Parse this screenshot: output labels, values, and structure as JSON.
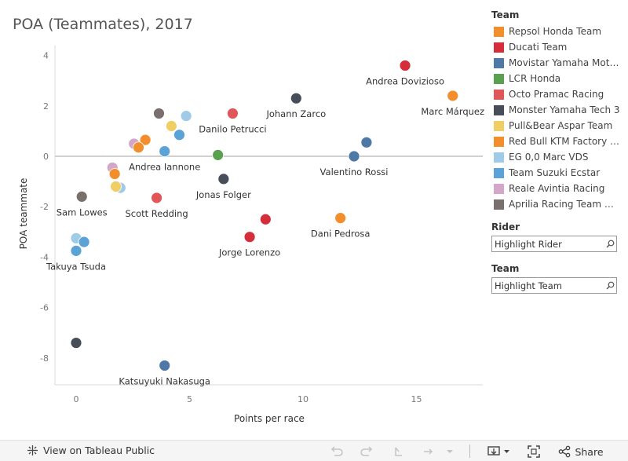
{
  "title": "POA (Teammates), 2017",
  "chart_data": {
    "type": "scatter",
    "xlabel": "Points per race",
    "ylabel": "POA teammate",
    "xlim": [
      -2,
      18
    ],
    "ylim": [
      -9,
      4.3
    ],
    "xticks": [
      "0",
      "5",
      "10",
      "15"
    ],
    "xtick_values": [
      0,
      5,
      10,
      15
    ],
    "yticks": [
      "4",
      "2",
      "0",
      "-2",
      "-4",
      "-6",
      "-8"
    ],
    "ytick_values": [
      4,
      2,
      0,
      -2,
      -4,
      -6,
      -8
    ],
    "zero_line": true,
    "points": [
      {
        "x": 14.5,
        "y": 3.6,
        "team": "Ducati Team",
        "label": "Andrea Dovizioso"
      },
      {
        "x": 16.6,
        "y": 2.4,
        "team": "Repsol Honda Team",
        "label": "Marc Márquez"
      },
      {
        "x": 9.7,
        "y": 2.3,
        "team": "Monster Yamaha Tech 3",
        "label": "Johann Zarco"
      },
      {
        "x": 6.9,
        "y": 1.7,
        "team": "Octo Pramac Racing",
        "label": "Danilo Petrucci"
      },
      {
        "x": 3.65,
        "y": 1.7,
        "team": "Aprilia Racing Team Gresini",
        "label": ""
      },
      {
        "x": 4.85,
        "y": 1.6,
        "team": "EG 0,0 Marc VDS",
        "label": ""
      },
      {
        "x": 4.2,
        "y": 1.2,
        "team": "Pull&Bear Aspar Team",
        "label": ""
      },
      {
        "x": 4.55,
        "y": 0.85,
        "team": "Team Suzuki Ecstar",
        "label": ""
      },
      {
        "x": 3.05,
        "y": 0.65,
        "team": "Red Bull KTM Factory Racing",
        "label": ""
      },
      {
        "x": 2.55,
        "y": 0.5,
        "team": "Reale Avintia Racing",
        "label": ""
      },
      {
        "x": 2.75,
        "y": 0.35,
        "team": "Red Bull KTM Factory Racing",
        "label": ""
      },
      {
        "x": 3.9,
        "y": 0.2,
        "team": "Team Suzuki Ecstar",
        "label": "Andrea Iannone"
      },
      {
        "x": 6.25,
        "y": 0.05,
        "team": "LCR Honda",
        "label": ""
      },
      {
        "x": 12.8,
        "y": 0.55,
        "team": "Movistar Yamaha MotoGP",
        "label": ""
      },
      {
        "x": 12.25,
        "y": 0.0,
        "team": "Movistar Yamaha MotoGP",
        "label": "Valentino Rossi"
      },
      {
        "x": 1.6,
        "y": -0.45,
        "team": "Reale Avintia Racing",
        "label": ""
      },
      {
        "x": 1.7,
        "y": -0.7,
        "team": "Red Bull KTM Factory Racing",
        "label": ""
      },
      {
        "x": 6.5,
        "y": -0.9,
        "team": "Monster Yamaha Tech 3",
        "label": "Jonas Folger"
      },
      {
        "x": 1.95,
        "y": -1.25,
        "team": "EG 0,0 Marc VDS",
        "label": ""
      },
      {
        "x": 1.75,
        "y": -1.2,
        "team": "Pull&Bear Aspar Team",
        "label": ""
      },
      {
        "x": 3.55,
        "y": -1.65,
        "team": "Octo Pramac Racing",
        "label": "Scott Redding"
      },
      {
        "x": 0.25,
        "y": -1.6,
        "team": "Aprilia Racing Team Gresini",
        "label": "Sam Lowes"
      },
      {
        "x": 11.65,
        "y": -2.45,
        "team": "Repsol Honda Team",
        "label": "Dani Pedrosa"
      },
      {
        "x": 8.35,
        "y": -2.5,
        "team": "Ducati Team",
        "label": ""
      },
      {
        "x": 7.65,
        "y": -3.2,
        "team": "Ducati Team",
        "label": "Jorge Lorenzo"
      },
      {
        "x": 0.0,
        "y": -3.25,
        "team": "EG 0,0 Marc VDS",
        "label": ""
      },
      {
        "x": 0.35,
        "y": -3.4,
        "team": "Team Suzuki Ecstar",
        "label": ""
      },
      {
        "x": 0.0,
        "y": -3.75,
        "team": "Team Suzuki Ecstar",
        "label": "Takuya Tsuda"
      },
      {
        "x": 0.0,
        "y": -7.4,
        "team": "Monster Yamaha Tech 3",
        "label": ""
      },
      {
        "x": 3.9,
        "y": -8.3,
        "team": "Movistar Yamaha MotoGP",
        "label": "Katsuyuki Nakasuga"
      }
    ]
  },
  "legend": {
    "title": "Team",
    "items": [
      {
        "label": "Repsol Honda Team",
        "color": "#F28E2B"
      },
      {
        "label": "Ducati Team",
        "color": "#D62D3A"
      },
      {
        "label": "Movistar Yamaha MotoGP",
        "color": "#4E79A7"
      },
      {
        "label": "LCR Honda",
        "color": "#59A14F"
      },
      {
        "label": "Octo Pramac Racing",
        "color": "#E15759"
      },
      {
        "label": "Monster Yamaha Tech 3",
        "color": "#474E5A"
      },
      {
        "label": "Pull&Bear Aspar Team",
        "color": "#F1CE63"
      },
      {
        "label": "Red Bull KTM Factory Racing",
        "color": "#F28E2B"
      },
      {
        "label": "EG 0,0 Marc VDS",
        "color": "#A0CBE8"
      },
      {
        "label": "Team Suzuki Ecstar",
        "color": "#5BA3D6"
      },
      {
        "label": "Reale Avintia Racing",
        "color": "#D4A6C8"
      },
      {
        "label": "Aprilia Racing Team Gresini",
        "color": "#79706E"
      }
    ]
  },
  "filters": {
    "rider": {
      "title": "Rider",
      "placeholder": "Highlight Rider"
    },
    "team": {
      "title": "Team",
      "placeholder": "Highlight Team"
    }
  },
  "footer": {
    "view_link": "View on Tableau Public",
    "share_label": "Share"
  },
  "colors": {
    "axis": "#d9d9d9",
    "zero_line": "#d0d0d0",
    "tick_text": "#777777",
    "label_text": "#333333"
  }
}
